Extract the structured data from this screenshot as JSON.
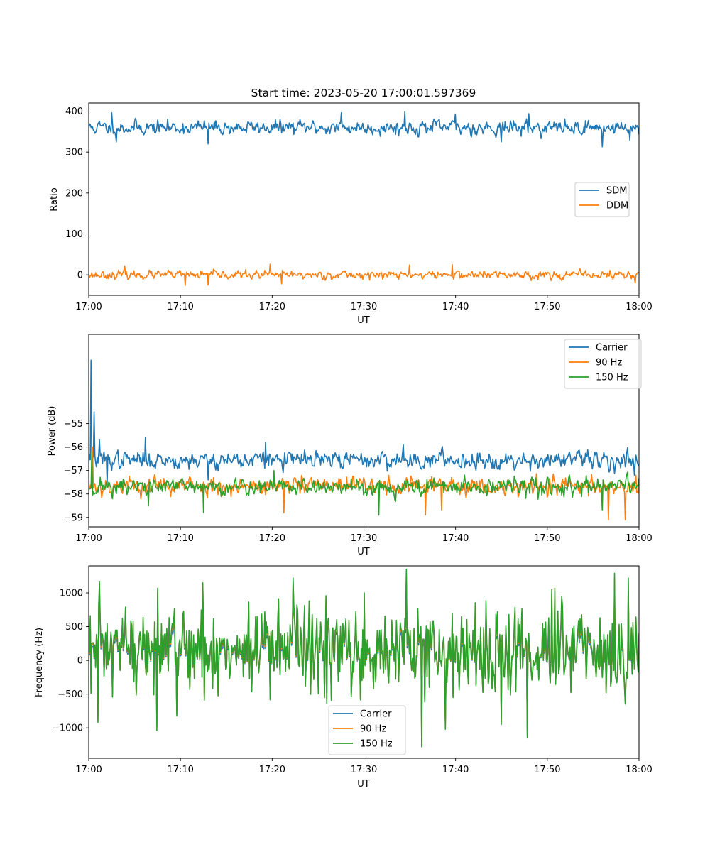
{
  "figure_title": "Start time: 2023-05-20 17:00:01.597369",
  "chart_data": [
    {
      "type": "line",
      "xlabel": "UT",
      "ylabel": "Ratio",
      "x_ticks": [
        "17:00",
        "17:10",
        "17:20",
        "17:30",
        "17:40",
        "17:50",
        "18:00"
      ],
      "x_range_minutes": [
        0,
        60
      ],
      "ylim": [
        -50,
        420
      ],
      "y_ticks": [
        0,
        100,
        200,
        300,
        400
      ],
      "grid": false,
      "legend_position": "center-right",
      "series": [
        {
          "name": "SDM",
          "color": "#1f77b4",
          "mean": 360,
          "std": 14,
          "seed": 11,
          "peaks": [
            [
              2.5,
              396
            ],
            [
              27.5,
              396
            ],
            [
              34.5,
              399
            ],
            [
              40,
              393
            ],
            [
              48,
              394
            ],
            [
              3,
              325
            ],
            [
              13,
              320
            ],
            [
              45,
              325
            ],
            [
              56,
              313
            ],
            [
              59,
              329
            ]
          ]
        },
        {
          "name": "DDM",
          "color": "#ff7f0e",
          "mean": 0,
          "std": 8,
          "seed": 23,
          "peaks": [
            [
              3.9,
              22
            ],
            [
              19.8,
              26
            ],
            [
              39.6,
              25
            ],
            [
              35,
              24
            ],
            [
              10.5,
              -26
            ],
            [
              13,
              -25
            ],
            [
              21,
              -22
            ],
            [
              59.6,
              -20
            ]
          ]
        }
      ]
    },
    {
      "type": "line",
      "xlabel": "UT",
      "ylabel": "Power (dB)",
      "x_ticks": [
        "17:00",
        "17:10",
        "17:20",
        "17:30",
        "17:40",
        "17:50",
        "18:00"
      ],
      "x_range_minutes": [
        0,
        60
      ],
      "ylim": [
        -59.4,
        -51.2
      ],
      "y_ticks": [
        -55,
        -56,
        -57,
        -58,
        -59
      ],
      "grid": false,
      "legend_position": "top-right",
      "series": [
        {
          "name": "Carrier",
          "color": "#1f77b4",
          "mean": -56.55,
          "std": 0.3,
          "seed": 37,
          "peaks": [
            [
              0.25,
              -52.3
            ],
            [
              0.6,
              -54.5
            ],
            [
              1.2,
              -55.7
            ],
            [
              6.2,
              -55.6
            ],
            [
              19.3,
              -55.8
            ],
            [
              34.3,
              -55.9
            ],
            [
              2,
              -57.6
            ],
            [
              13,
              -57.4
            ],
            [
              59.5,
              -57.2
            ]
          ]
        },
        {
          "name": "90 Hz",
          "color": "#ff7f0e",
          "mean": -57.65,
          "std": 0.32,
          "seed": 53,
          "peaks": [
            [
              0.4,
              -56.0
            ],
            [
              36.7,
              -58.9
            ],
            [
              56.7,
              -59.1
            ],
            [
              58.5,
              -59.1
            ],
            [
              59.7,
              -57.2
            ],
            [
              21.3,
              -58.8
            ],
            [
              38.5,
              -58.7
            ]
          ]
        },
        {
          "name": "150 Hz",
          "color": "#2ca02c",
          "mean": -57.7,
          "std": 0.3,
          "seed": 71,
          "peaks": [
            [
              0.3,
              -56.2
            ],
            [
              6.5,
              -58.5
            ],
            [
              12.5,
              -58.8
            ],
            [
              31.6,
              -58.9
            ],
            [
              56,
              -58.7
            ],
            [
              20.2,
              -57.0
            ]
          ]
        }
      ]
    },
    {
      "type": "line",
      "xlabel": "UT",
      "ylabel": "Frequency (Hz)",
      "x_ticks": [
        "17:00",
        "17:10",
        "17:20",
        "17:30",
        "17:40",
        "17:50",
        "18:00"
      ],
      "x_range_minutes": [
        0,
        60
      ],
      "ylim": [
        -1450,
        1400
      ],
      "y_ticks": [
        1000,
        500,
        0,
        -500,
        -1000
      ],
      "grid": false,
      "legend_position": "lower-center",
      "series": [
        {
          "name": "Carrier",
          "color": "#1f77b4",
          "offset": -40
        },
        {
          "name": "90 Hz",
          "color": "#ff7f0e",
          "offset": -15
        },
        {
          "name": "150 Hz",
          "color": "#2ca02c",
          "offset": 0
        }
      ],
      "base": {
        "mean": 150,
        "std": 330,
        "seed": 97,
        "peaks": [
          [
            34.6,
            1350
          ],
          [
            22.3,
            1220
          ],
          [
            57.3,
            1290
          ],
          [
            58.8,
            1220
          ],
          [
            12.4,
            1150
          ],
          [
            7.5,
            1070
          ],
          [
            1.0,
            -920
          ],
          [
            7.4,
            -1040
          ],
          [
            36.3,
            -1280
          ],
          [
            47.8,
            -1150
          ],
          [
            45,
            -950
          ],
          [
            38.9,
            -1020
          ],
          [
            30,
            1000
          ],
          [
            50.5,
            1050
          ]
        ]
      }
    }
  ]
}
